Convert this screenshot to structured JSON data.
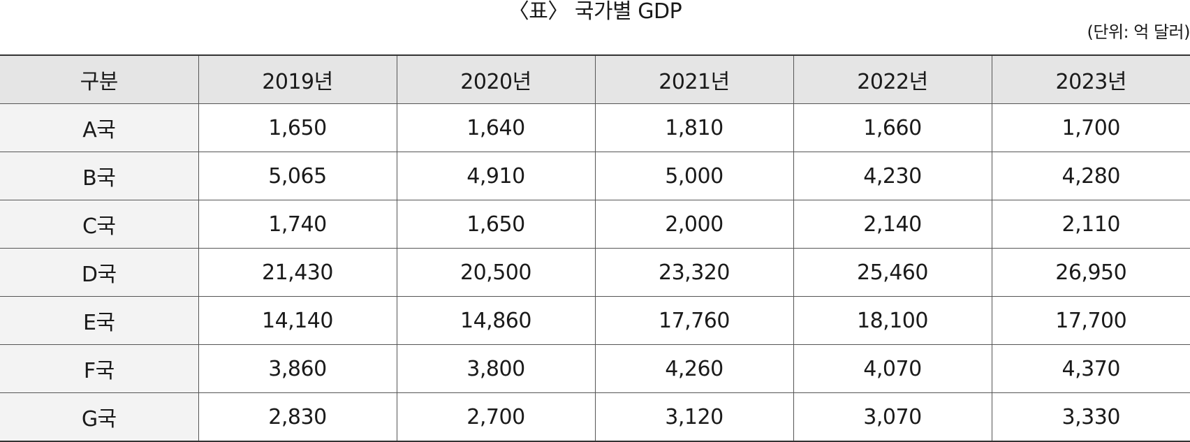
{
  "title": "〈표〉 국가별 GDP",
  "unit": "(단위: 억 달러)",
  "table": {
    "header": [
      "구분",
      "2019년",
      "2020년",
      "2021년",
      "2022년",
      "2023년"
    ],
    "rows": [
      {
        "label": "A국",
        "values": [
          "1,650",
          "1,640",
          "1,810",
          "1,660",
          "1,700"
        ]
      },
      {
        "label": "B국",
        "values": [
          "5,065",
          "4,910",
          "5,000",
          "4,230",
          "4,280"
        ]
      },
      {
        "label": "C국",
        "values": [
          "1,740",
          "1,650",
          "2,000",
          "2,140",
          "2,110"
        ]
      },
      {
        "label": "D국",
        "values": [
          "21,430",
          "20,500",
          "23,320",
          "25,460",
          "26,950"
        ]
      },
      {
        "label": "E국",
        "values": [
          "14,140",
          "14,860",
          "17,760",
          "18,100",
          "17,700"
        ]
      },
      {
        "label": "F국",
        "values": [
          "3,860",
          "3,800",
          "4,260",
          "4,070",
          "4,370"
        ]
      },
      {
        "label": "G국",
        "values": [
          "2,830",
          "2,700",
          "3,120",
          "3,070",
          "3,330"
        ]
      }
    ]
  }
}
